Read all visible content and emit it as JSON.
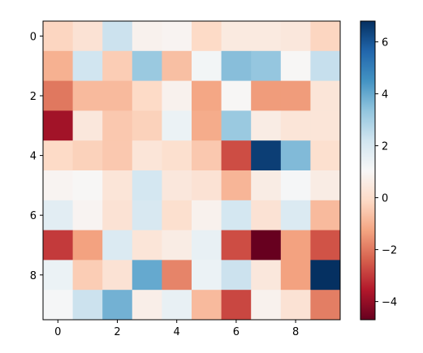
{
  "chart_data": {
    "type": "heatmap",
    "colormap": "RdBu",
    "x_ticks": [
      "0",
      "2",
      "4",
      "6",
      "8"
    ],
    "y_ticks": [
      "0",
      "2",
      "4",
      "6",
      "8"
    ],
    "colorbar_ticks": [
      "6",
      "4",
      "2",
      "0",
      "−2",
      "−4"
    ],
    "colorbar_tick_values": [
      6,
      4,
      2,
      0,
      -2,
      -4
    ],
    "vmin": -4.7,
    "vmax": 6.8,
    "matrix": [
      [
        -0.2,
        0.2,
        2.3,
        0.8,
        0.9,
        -0.1,
        0.5,
        0.5,
        0.4,
        -0.2
      ],
      [
        -1.0,
        2.2,
        -0.4,
        3.2,
        -0.7,
        1.2,
        3.5,
        3.3,
        1.0,
        2.4
      ],
      [
        -2.0,
        -0.8,
        -0.8,
        -0.1,
        0.8,
        -1.2,
        1.0,
        -1.4,
        -1.4,
        0.3
      ],
      [
        -3.8,
        0.4,
        -0.5,
        -0.3,
        1.4,
        -1.1,
        3.2,
        0.6,
        0.3,
        0.3
      ],
      [
        -0.1,
        -0.3,
        -0.5,
        0.3,
        0.1,
        -0.5,
        -2.7,
        6.5,
        3.6,
        0.1
      ],
      [
        0.9,
        1.0,
        0.3,
        2.1,
        0.4,
        0.2,
        -0.9,
        0.6,
        1.1,
        0.6
      ],
      [
        1.7,
        0.9,
        0.2,
        2.0,
        0.1,
        0.8,
        2.1,
        0.2,
        1.9,
        -0.8
      ],
      [
        -3.0,
        -1.3,
        1.9,
        0.3,
        0.6,
        1.5,
        -2.7,
        -4.7,
        -1.3,
        -2.6
      ],
      [
        1.4,
        -0.4,
        0.2,
        4.0,
        -1.8,
        1.4,
        2.3,
        0.4,
        -1.3,
        6.8
      ],
      [
        1.1,
        2.3,
        3.8,
        0.7,
        1.5,
        -0.8,
        -2.8,
        0.8,
        0.2,
        -1.9
      ]
    ]
  }
}
